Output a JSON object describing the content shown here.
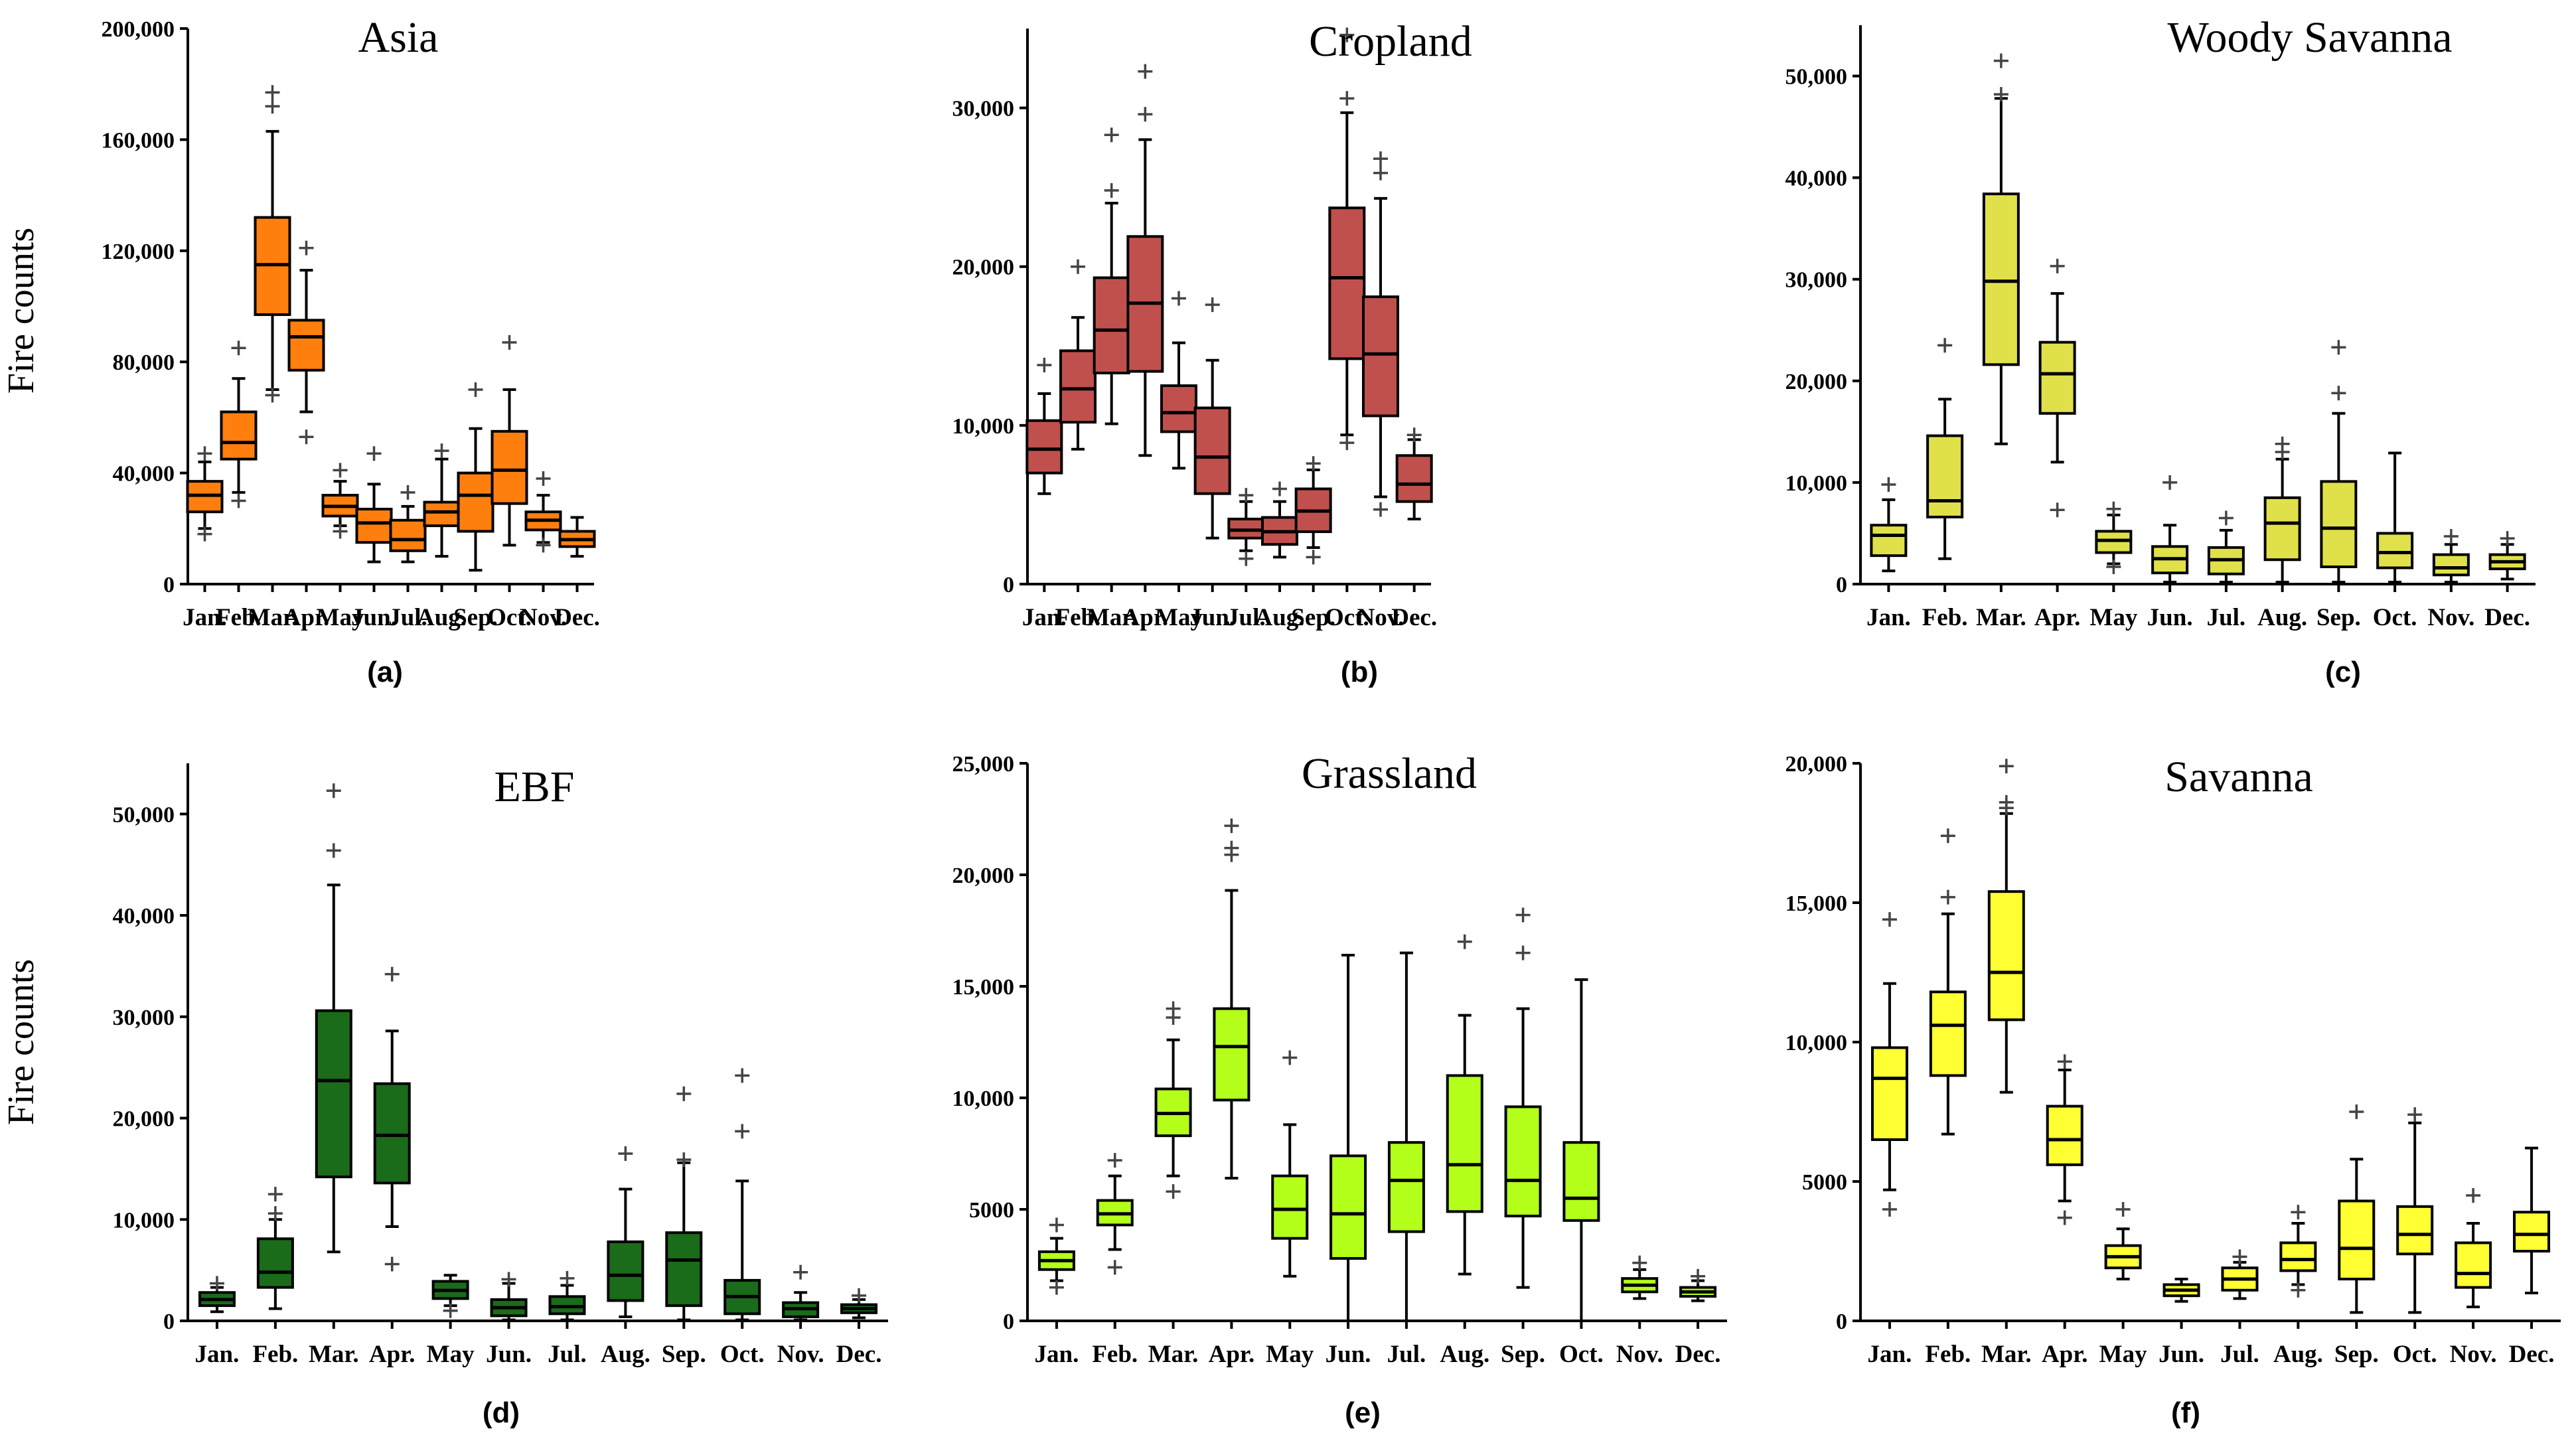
{
  "figure": {
    "y_axis_label": "Fire counts"
  },
  "chart_data": [
    {
      "type": "boxplot",
      "panel_label": "(a)",
      "title": "Asia",
      "color": "#ff7f0e",
      "ylabel": "Fire counts",
      "ylim": [
        0,
        200000
      ],
      "yticks": [
        0,
        40000,
        80000,
        120000,
        160000,
        200000
      ],
      "ytick_labels": [
        "0",
        "40,000",
        "80,000",
        "120,000",
        "160,000",
        "200,000"
      ],
      "categories": [
        "Jan.",
        "Feb.",
        "Mar.",
        "Apr.",
        "May",
        "Jun.",
        "Jul.",
        "Aug.",
        "Sep.",
        "Oct.",
        "Nov.",
        "Dec."
      ],
      "boxes": [
        {
          "low": 20000,
          "q1": 26000,
          "median": 32000,
          "q3": 37000,
          "high": 44000,
          "outliers": [
            47000,
            18000
          ]
        },
        {
          "low": 33000,
          "q1": 45000,
          "median": 51000,
          "q3": 62000,
          "high": 74000,
          "outliers": [
            85000,
            30000
          ]
        },
        {
          "low": 70000,
          "q1": 97000,
          "median": 115000,
          "q3": 132000,
          "high": 163000,
          "outliers": [
            177000,
            172000,
            68000
          ]
        },
        {
          "low": 62000,
          "q1": 77000,
          "median": 89000,
          "q3": 95000,
          "high": 113000,
          "outliers": [
            121000,
            53000
          ]
        },
        {
          "low": 21000,
          "q1": 24500,
          "median": 28000,
          "q3": 32000,
          "high": 37000,
          "outliers": [
            41000,
            19000
          ]
        },
        {
          "low": 8000,
          "q1": 15000,
          "median": 22000,
          "q3": 27000,
          "high": 36000,
          "outliers": [
            47000
          ]
        },
        {
          "low": 8000,
          "q1": 12000,
          "median": 16000,
          "q3": 23000,
          "high": 28000,
          "outliers": [
            33000
          ]
        },
        {
          "low": 10000,
          "q1": 21000,
          "median": 26000,
          "q3": 29500,
          "high": 45000,
          "outliers": [
            48000
          ]
        },
        {
          "low": 5000,
          "q1": 19000,
          "median": 32000,
          "q3": 40000,
          "high": 56000,
          "outliers": [
            70000
          ]
        },
        {
          "low": 14000,
          "q1": 29000,
          "median": 41000,
          "q3": 55000,
          "high": 70000,
          "outliers": [
            87000
          ]
        },
        {
          "low": 15000,
          "q1": 19500,
          "median": 23000,
          "q3": 26000,
          "high": 32000,
          "outliers": [
            38000,
            14000
          ]
        },
        {
          "low": 10000,
          "q1": 13500,
          "median": 16000,
          "q3": 19000,
          "high": 24000,
          "outliers": []
        }
      ]
    },
    {
      "type": "boxplot",
      "panel_label": "(b)",
      "title": "Cropland",
      "color": "#c0504d",
      "ylim": [
        0,
        35000
      ],
      "yticks": [
        0,
        10000,
        20000,
        30000
      ],
      "ytick_labels": [
        "0",
        "10,000",
        "20,000",
        "30,000"
      ],
      "categories": [
        "Jan.",
        "Feb.",
        "Mar.",
        "Apr.",
        "May",
        "Jun.",
        "Jul.",
        "Aug.",
        "Sep.",
        "Oct.",
        "Nov.",
        "Dec."
      ],
      "boxes": [
        {
          "low": 5700,
          "q1": 7000,
          "median": 8500,
          "q3": 10300,
          "high": 12000,
          "outliers": [
            13800
          ]
        },
        {
          "low": 8500,
          "q1": 10200,
          "median": 12300,
          "q3": 14700,
          "high": 16800,
          "outliers": [
            20000
          ]
        },
        {
          "low": 10100,
          "q1": 13300,
          "median": 16000,
          "q3": 19300,
          "high": 24000,
          "outliers": [
            28300,
            24800
          ]
        },
        {
          "low": 8100,
          "q1": 13400,
          "median": 17700,
          "q3": 21900,
          "high": 28000,
          "outliers": [
            32300,
            29600
          ]
        },
        {
          "low": 7300,
          "q1": 9600,
          "median": 10800,
          "q3": 12500,
          "high": 15200,
          "outliers": [
            18000
          ]
        },
        {
          "low": 2900,
          "q1": 5700,
          "median": 8000,
          "q3": 11100,
          "high": 14100,
          "outliers": [
            17600
          ]
        },
        {
          "low": 2100,
          "q1": 2900,
          "median": 3400,
          "q3": 4100,
          "high": 5200,
          "outliers": [
            5600,
            1600
          ]
        },
        {
          "low": 1700,
          "q1": 2500,
          "median": 3300,
          "q3": 4200,
          "high": 5200,
          "outliers": [
            6000
          ]
        },
        {
          "low": 2300,
          "q1": 3300,
          "median": 4600,
          "q3": 6000,
          "high": 7200,
          "outliers": [
            7600,
            1700
          ]
        },
        {
          "low": 9400,
          "q1": 14200,
          "median": 19300,
          "q3": 23700,
          "high": 29700,
          "outliers": [
            34600,
            30600,
            8900
          ]
        },
        {
          "low": 5500,
          "q1": 10600,
          "median": 14500,
          "q3": 18100,
          "high": 24300,
          "outliers": [
            26800,
            25900,
            4700
          ]
        },
        {
          "low": 4100,
          "q1": 5200,
          "median": 6300,
          "q3": 8100,
          "high": 9100,
          "outliers": [
            9400
          ]
        }
      ]
    },
    {
      "type": "boxplot",
      "panel_label": "(c)",
      "title": "Woody Savanna",
      "color": "#e0e04a",
      "ylim": [
        0,
        55000
      ],
      "yticks": [
        0,
        10000,
        20000,
        30000,
        40000,
        50000
      ],
      "ytick_labels": [
        "0",
        "10,000",
        "20,000",
        "30,000",
        "40,000",
        "50,000"
      ],
      "categories": [
        "Jan.",
        "Feb.",
        "Mar.",
        "Apr.",
        "May",
        "Jun.",
        "Jul.",
        "Aug.",
        "Sep.",
        "Oct.",
        "Nov.",
        "Dec."
      ],
      "boxes": [
        {
          "low": 1300,
          "q1": 2800,
          "median": 4800,
          "q3": 5800,
          "high": 8300,
          "outliers": [
            9800
          ]
        },
        {
          "low": 2500,
          "q1": 6600,
          "median": 8200,
          "q3": 14600,
          "high": 18200,
          "outliers": [
            23500
          ]
        },
        {
          "low": 13800,
          "q1": 21600,
          "median": 29800,
          "q3": 38400,
          "high": 47800,
          "outliers": [
            51500,
            48200
          ]
        },
        {
          "low": 12000,
          "q1": 16800,
          "median": 20700,
          "q3": 23800,
          "high": 28600,
          "outliers": [
            31300,
            7300
          ]
        },
        {
          "low": 2000,
          "q1": 3100,
          "median": 4300,
          "q3": 5200,
          "high": 6800,
          "outliers": [
            7400,
            1700
          ]
        },
        {
          "low": 200,
          "q1": 1100,
          "median": 2500,
          "q3": 3700,
          "high": 5800,
          "outliers": [
            10000
          ]
        },
        {
          "low": 200,
          "q1": 1000,
          "median": 2400,
          "q3": 3600,
          "high": 5300,
          "outliers": [
            6500
          ]
        },
        {
          "low": 200,
          "q1": 2400,
          "median": 6000,
          "q3": 8500,
          "high": 12300,
          "outliers": [
            13800,
            13000
          ]
        },
        {
          "low": 200,
          "q1": 1700,
          "median": 5500,
          "q3": 10100,
          "high": 16800,
          "outliers": [
            23300,
            18800
          ]
        },
        {
          "low": 200,
          "q1": 1600,
          "median": 3100,
          "q3": 5000,
          "high": 12900,
          "outliers": []
        },
        {
          "low": 200,
          "q1": 900,
          "median": 1600,
          "q3": 2900,
          "high": 3900,
          "outliers": [
            4700
          ]
        },
        {
          "low": 500,
          "q1": 1500,
          "median": 2200,
          "q3": 2900,
          "high": 3900,
          "outliers": [
            4500
          ]
        }
      ]
    },
    {
      "type": "boxplot",
      "panel_label": "(d)",
      "title": "EBF",
      "color": "#1a6b1a",
      "ylabel": "Fire counts",
      "ylim": [
        0,
        55000
      ],
      "yticks": [
        0,
        10000,
        20000,
        30000,
        40000,
        50000
      ],
      "ytick_labels": [
        "0",
        "10,000",
        "20,000",
        "30,000",
        "40,000",
        "50,000"
      ],
      "categories": [
        "Jan.",
        "Feb.",
        "Mar.",
        "Apr.",
        "May",
        "Jun.",
        "Jul.",
        "Aug.",
        "Sep.",
        "Oct.",
        "Nov.",
        "Dec."
      ],
      "boxes": [
        {
          "low": 900,
          "q1": 1500,
          "median": 2100,
          "q3": 2800,
          "high": 3300,
          "outliers": [
            3700
          ]
        },
        {
          "low": 1200,
          "q1": 3300,
          "median": 4800,
          "q3": 8100,
          "high": 10000,
          "outliers": [
            12500,
            10600
          ]
        },
        {
          "low": 6800,
          "q1": 14200,
          "median": 23700,
          "q3": 30600,
          "high": 43000,
          "outliers": [
            52300,
            46400
          ]
        },
        {
          "low": 9300,
          "q1": 13600,
          "median": 18300,
          "q3": 23400,
          "high": 28600,
          "outliers": [
            34200,
            5600
          ]
        },
        {
          "low": 1500,
          "q1": 2200,
          "median": 3000,
          "q3": 3900,
          "high": 4500,
          "outliers": [
            1000
          ]
        },
        {
          "low": 100,
          "q1": 500,
          "median": 1300,
          "q3": 2100,
          "high": 3700,
          "outliers": [
            4100
          ]
        },
        {
          "low": 100,
          "q1": 700,
          "median": 1400,
          "q3": 2400,
          "high": 3500,
          "outliers": [
            4200
          ]
        },
        {
          "low": 400,
          "q1": 2000,
          "median": 4500,
          "q3": 7800,
          "high": 13000,
          "outliers": [
            16500
          ]
        },
        {
          "low": 100,
          "q1": 1500,
          "median": 6000,
          "q3": 8700,
          "high": 15600,
          "outliers": [
            22400,
            15900
          ]
        },
        {
          "low": 100,
          "q1": 700,
          "median": 2400,
          "q3": 4000,
          "high": 13800,
          "outliers": [
            24200,
            18700
          ]
        },
        {
          "low": 100,
          "q1": 400,
          "median": 1200,
          "q3": 1800,
          "high": 2800,
          "outliers": [
            4800
          ]
        },
        {
          "low": 300,
          "q1": 800,
          "median": 1200,
          "q3": 1600,
          "high": 2100,
          "outliers": [
            2500
          ]
        }
      ]
    },
    {
      "type": "boxplot",
      "panel_label": "(e)",
      "title": "Grassland",
      "color": "#b3ff1a",
      "ylim": [
        0,
        25000
      ],
      "yticks": [
        0,
        5000,
        10000,
        15000,
        20000,
        25000
      ],
      "ytick_labels": [
        "0",
        "5000",
        "10,000",
        "15,000",
        "20,000",
        "25,000"
      ],
      "categories": [
        "Jan.",
        "Feb.",
        "Mar.",
        "Apr.",
        "May",
        "Jun.",
        "Jul.",
        "Aug.",
        "Sep.",
        "Oct.",
        "Nov.",
        "Dec."
      ],
      "boxes": [
        {
          "low": 1800,
          "q1": 2300,
          "median": 2700,
          "q3": 3100,
          "high": 3700,
          "outliers": [
            4300,
            1500
          ]
        },
        {
          "low": 3200,
          "q1": 4300,
          "median": 4800,
          "q3": 5400,
          "high": 6500,
          "outliers": [
            7200,
            2400
          ]
        },
        {
          "low": 6500,
          "q1": 8300,
          "median": 9300,
          "q3": 10400,
          "high": 12600,
          "outliers": [
            14000,
            13600,
            5800
          ]
        },
        {
          "low": 6400,
          "q1": 9900,
          "median": 12300,
          "q3": 14000,
          "high": 19300,
          "outliers": [
            22200,
            21200,
            20900
          ]
        },
        {
          "low": 2000,
          "q1": 3700,
          "median": 5000,
          "q3": 6500,
          "high": 8800,
          "outliers": [
            11800
          ]
        },
        {
          "low": 0,
          "q1": 2800,
          "median": 4800,
          "q3": 7400,
          "high": 16400,
          "outliers": []
        },
        {
          "low": 0,
          "q1": 4000,
          "median": 6300,
          "q3": 8000,
          "high": 16500,
          "outliers": []
        },
        {
          "low": 2100,
          "q1": 4900,
          "median": 7000,
          "q3": 11000,
          "high": 13700,
          "outliers": [
            17000
          ]
        },
        {
          "low": 1500,
          "q1": 4700,
          "median": 6300,
          "q3": 9600,
          "high": 14000,
          "outliers": [
            18200,
            16500
          ]
        },
        {
          "low": 0,
          "q1": 4500,
          "median": 5500,
          "q3": 8000,
          "high": 15300,
          "outliers": []
        },
        {
          "low": 1000,
          "q1": 1300,
          "median": 1600,
          "q3": 1900,
          "high": 2300,
          "outliers": [
            2600
          ]
        },
        {
          "low": 900,
          "q1": 1100,
          "median": 1300,
          "q3": 1500,
          "high": 1800,
          "outliers": [
            2000
          ]
        }
      ]
    },
    {
      "type": "boxplot",
      "panel_label": "(f)",
      "title": "Savanna",
      "color": "#ffff33",
      "ylim": [
        0,
        20000
      ],
      "yticks": [
        0,
        5000,
        10000,
        15000,
        20000
      ],
      "ytick_labels": [
        "0",
        "5000",
        "10,000",
        "15,000",
        "20,000"
      ],
      "categories": [
        "Jan.",
        "Feb.",
        "Mar.",
        "Apr.",
        "May",
        "Jun.",
        "Jul.",
        "Aug.",
        "Sep.",
        "Oct.",
        "Nov.",
        "Dec."
      ],
      "boxes": [
        {
          "low": 4700,
          "q1": 6500,
          "median": 8700,
          "q3": 9800,
          "high": 12100,
          "outliers": [
            14400,
            4000
          ]
        },
        {
          "low": 6700,
          "q1": 8800,
          "median": 10600,
          "q3": 11800,
          "high": 14600,
          "outliers": [
            17400,
            15200
          ]
        },
        {
          "low": 8200,
          "q1": 10800,
          "median": 12500,
          "q3": 15400,
          "high": 18200,
          "outliers": [
            19900,
            18600,
            18400
          ]
        },
        {
          "low": 4300,
          "q1": 5600,
          "median": 6500,
          "q3": 7700,
          "high": 9000,
          "outliers": [
            9300,
            3700
          ]
        },
        {
          "low": 1500,
          "q1": 1900,
          "median": 2300,
          "q3": 2700,
          "high": 3300,
          "outliers": [
            4000
          ]
        },
        {
          "low": 700,
          "q1": 900,
          "median": 1100,
          "q3": 1300,
          "high": 1500,
          "outliers": []
        },
        {
          "low": 800,
          "q1": 1100,
          "median": 1500,
          "q3": 1900,
          "high": 2100,
          "outliers": [
            2300
          ]
        },
        {
          "low": 1300,
          "q1": 1800,
          "median": 2200,
          "q3": 2800,
          "high": 3500,
          "outliers": [
            3900,
            1100
          ]
        },
        {
          "low": 300,
          "q1": 1500,
          "median": 2600,
          "q3": 4300,
          "high": 5800,
          "outliers": [
            7500
          ]
        },
        {
          "low": 300,
          "q1": 2400,
          "median": 3100,
          "q3": 4100,
          "high": 7100,
          "outliers": [
            7400
          ]
        },
        {
          "low": 500,
          "q1": 1200,
          "median": 1700,
          "q3": 2800,
          "high": 3500,
          "outliers": [
            4500
          ]
        },
        {
          "low": 1000,
          "q1": 2500,
          "median": 3100,
          "q3": 3900,
          "high": 6200,
          "outliers": []
        }
      ]
    }
  ]
}
